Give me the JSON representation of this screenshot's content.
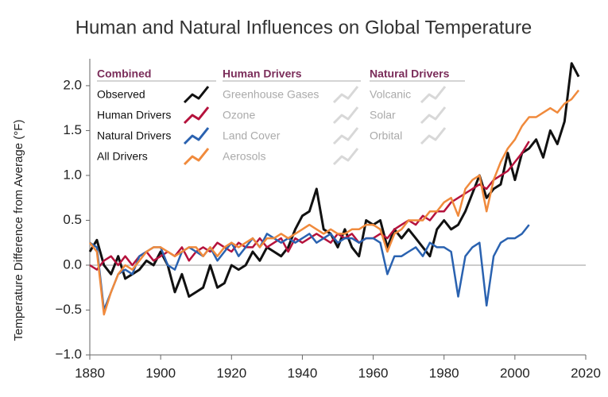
{
  "chart_data": {
    "type": "line",
    "title": "Human and Natural Influences on Global Temperature",
    "y_label": "Temperature Difference from Average (°F)",
    "x": [
      1880,
      1882,
      1884,
      1886,
      1888,
      1890,
      1892,
      1894,
      1896,
      1898,
      1900,
      1902,
      1904,
      1906,
      1908,
      1910,
      1912,
      1914,
      1916,
      1918,
      1920,
      1922,
      1924,
      1926,
      1928,
      1930,
      1932,
      1934,
      1936,
      1938,
      1940,
      1942,
      1944,
      1946,
      1948,
      1950,
      1952,
      1954,
      1956,
      1958,
      1960,
      1962,
      1964,
      1966,
      1968,
      1970,
      1972,
      1974,
      1976,
      1978,
      1980,
      1982,
      1984,
      1986,
      1988,
      1990,
      1992,
      1994,
      1996,
      1998,
      2000,
      2002,
      2004,
      2006,
      2008,
      2010,
      2012,
      2014,
      2016,
      2018
    ],
    "xlim": [
      1880,
      2020
    ],
    "xticks": [
      1880,
      1900,
      1920,
      1940,
      1960,
      1980,
      2000,
      2020
    ],
    "ylim": [
      -1.0,
      2.3
    ],
    "yticks": [
      {
        "value": -1.0,
        "label": "−1.0"
      },
      {
        "value": -0.5,
        "label": "−0.5"
      },
      {
        "value": 0,
        "label": "0.0"
      },
      0.5,
      {
        "value": 1.0,
        "label": "1.0"
      },
      1.5,
      {
        "value": 2.0,
        "label": "2.0"
      }
    ],
    "legend_title": "Combined",
    "series": [
      {
        "name": "Observed",
        "color": "#111111",
        "values": [
          0.15,
          0.28,
          0.0,
          -0.1,
          0.1,
          -0.15,
          -0.1,
          -0.05,
          0.05,
          0.0,
          0.15,
          0.0,
          -0.3,
          -0.1,
          -0.35,
          -0.3,
          -0.25,
          0.0,
          -0.25,
          -0.2,
          0.0,
          -0.05,
          0.0,
          0.15,
          0.05,
          0.2,
          0.15,
          0.1,
          0.2,
          0.4,
          0.55,
          0.6,
          0.85,
          0.4,
          0.35,
          0.2,
          0.4,
          0.2,
          0.1,
          0.5,
          0.45,
          0.5,
          0.2,
          0.4,
          0.3,
          0.4,
          0.3,
          0.2,
          0.1,
          0.4,
          0.5,
          0.4,
          0.45,
          0.6,
          0.8,
          1.0,
          0.75,
          0.85,
          0.9,
          1.25,
          0.95,
          1.25,
          1.3,
          1.4,
          1.2,
          1.5,
          1.35,
          1.6,
          2.25,
          2.1
        ]
      },
      {
        "name": "Human Drivers",
        "color": "#b5123c",
        "values": [
          0.0,
          -0.05,
          0.05,
          0.1,
          0.0,
          0.1,
          0.0,
          0.1,
          0.15,
          0.05,
          0.1,
          0.15,
          0.1,
          0.2,
          0.05,
          0.15,
          0.2,
          0.15,
          0.25,
          0.2,
          0.15,
          0.25,
          0.2,
          0.2,
          0.3,
          0.2,
          0.25,
          0.3,
          0.15,
          0.3,
          0.25,
          0.3,
          0.35,
          0.3,
          0.25,
          0.35,
          0.3,
          0.35,
          0.25,
          0.3,
          0.3,
          0.35,
          0.3,
          0.4,
          0.45,
          0.5,
          0.45,
          0.55,
          0.5,
          0.6,
          0.6,
          0.7,
          0.75,
          0.8,
          0.85,
          0.9,
          0.85,
          0.95,
          1.0,
          1.05,
          1.15,
          1.25,
          1.38,
          null,
          null,
          null,
          null,
          null,
          null,
          null
        ]
      },
      {
        "name": "Natural Drivers",
        "color": "#2a62b0",
        "values": [
          0.25,
          0.2,
          -0.5,
          -0.3,
          -0.1,
          -0.05,
          -0.1,
          0.1,
          0.15,
          0.2,
          0.2,
          0.0,
          -0.05,
          0.15,
          0.2,
          0.15,
          0.1,
          0.2,
          0.05,
          0.15,
          0.25,
          0.1,
          0.2,
          0.3,
          0.2,
          0.35,
          0.3,
          0.25,
          0.3,
          0.25,
          0.3,
          0.35,
          0.25,
          0.3,
          0.35,
          0.25,
          0.3,
          0.3,
          0.25,
          0.3,
          0.3,
          0.25,
          -0.1,
          0.1,
          0.1,
          0.15,
          0.2,
          0.1,
          0.25,
          0.2,
          0.2,
          0.15,
          -0.35,
          0.1,
          0.2,
          0.25,
          -0.45,
          0.1,
          0.25,
          0.3,
          0.3,
          0.35,
          0.45,
          null,
          null,
          null,
          null,
          null,
          null,
          null
        ]
      },
      {
        "name": "All Drivers",
        "color": "#f08a3c",
        "values": [
          0.25,
          0.15,
          -0.55,
          -0.3,
          -0.1,
          0.0,
          -0.05,
          0.05,
          0.15,
          0.2,
          0.2,
          0.15,
          0.1,
          0.15,
          0.2,
          0.2,
          0.1,
          0.2,
          0.1,
          0.2,
          0.25,
          0.2,
          0.25,
          0.3,
          0.2,
          0.3,
          0.3,
          0.35,
          0.3,
          0.35,
          0.4,
          0.45,
          0.4,
          0.35,
          0.4,
          0.35,
          0.35,
          0.4,
          0.4,
          0.45,
          0.45,
          0.4,
          0.15,
          0.35,
          0.4,
          0.5,
          0.5,
          0.5,
          0.6,
          0.6,
          0.7,
          0.75,
          0.55,
          0.85,
          0.95,
          1.0,
          0.6,
          0.95,
          1.15,
          1.3,
          1.4,
          1.55,
          1.65,
          1.65,
          1.7,
          1.75,
          1.7,
          1.8,
          1.85,
          1.95
        ]
      }
    ],
    "legend_groups": [
      {
        "title": "Human Drivers",
        "entries": [
          "Greenhouse Gases",
          "Ozone",
          "Land Cover",
          "Aerosols"
        ]
      },
      {
        "title": "Natural Drivers",
        "entries": [
          "Volcanic",
          "Solar",
          "Orbital"
        ]
      }
    ]
  }
}
